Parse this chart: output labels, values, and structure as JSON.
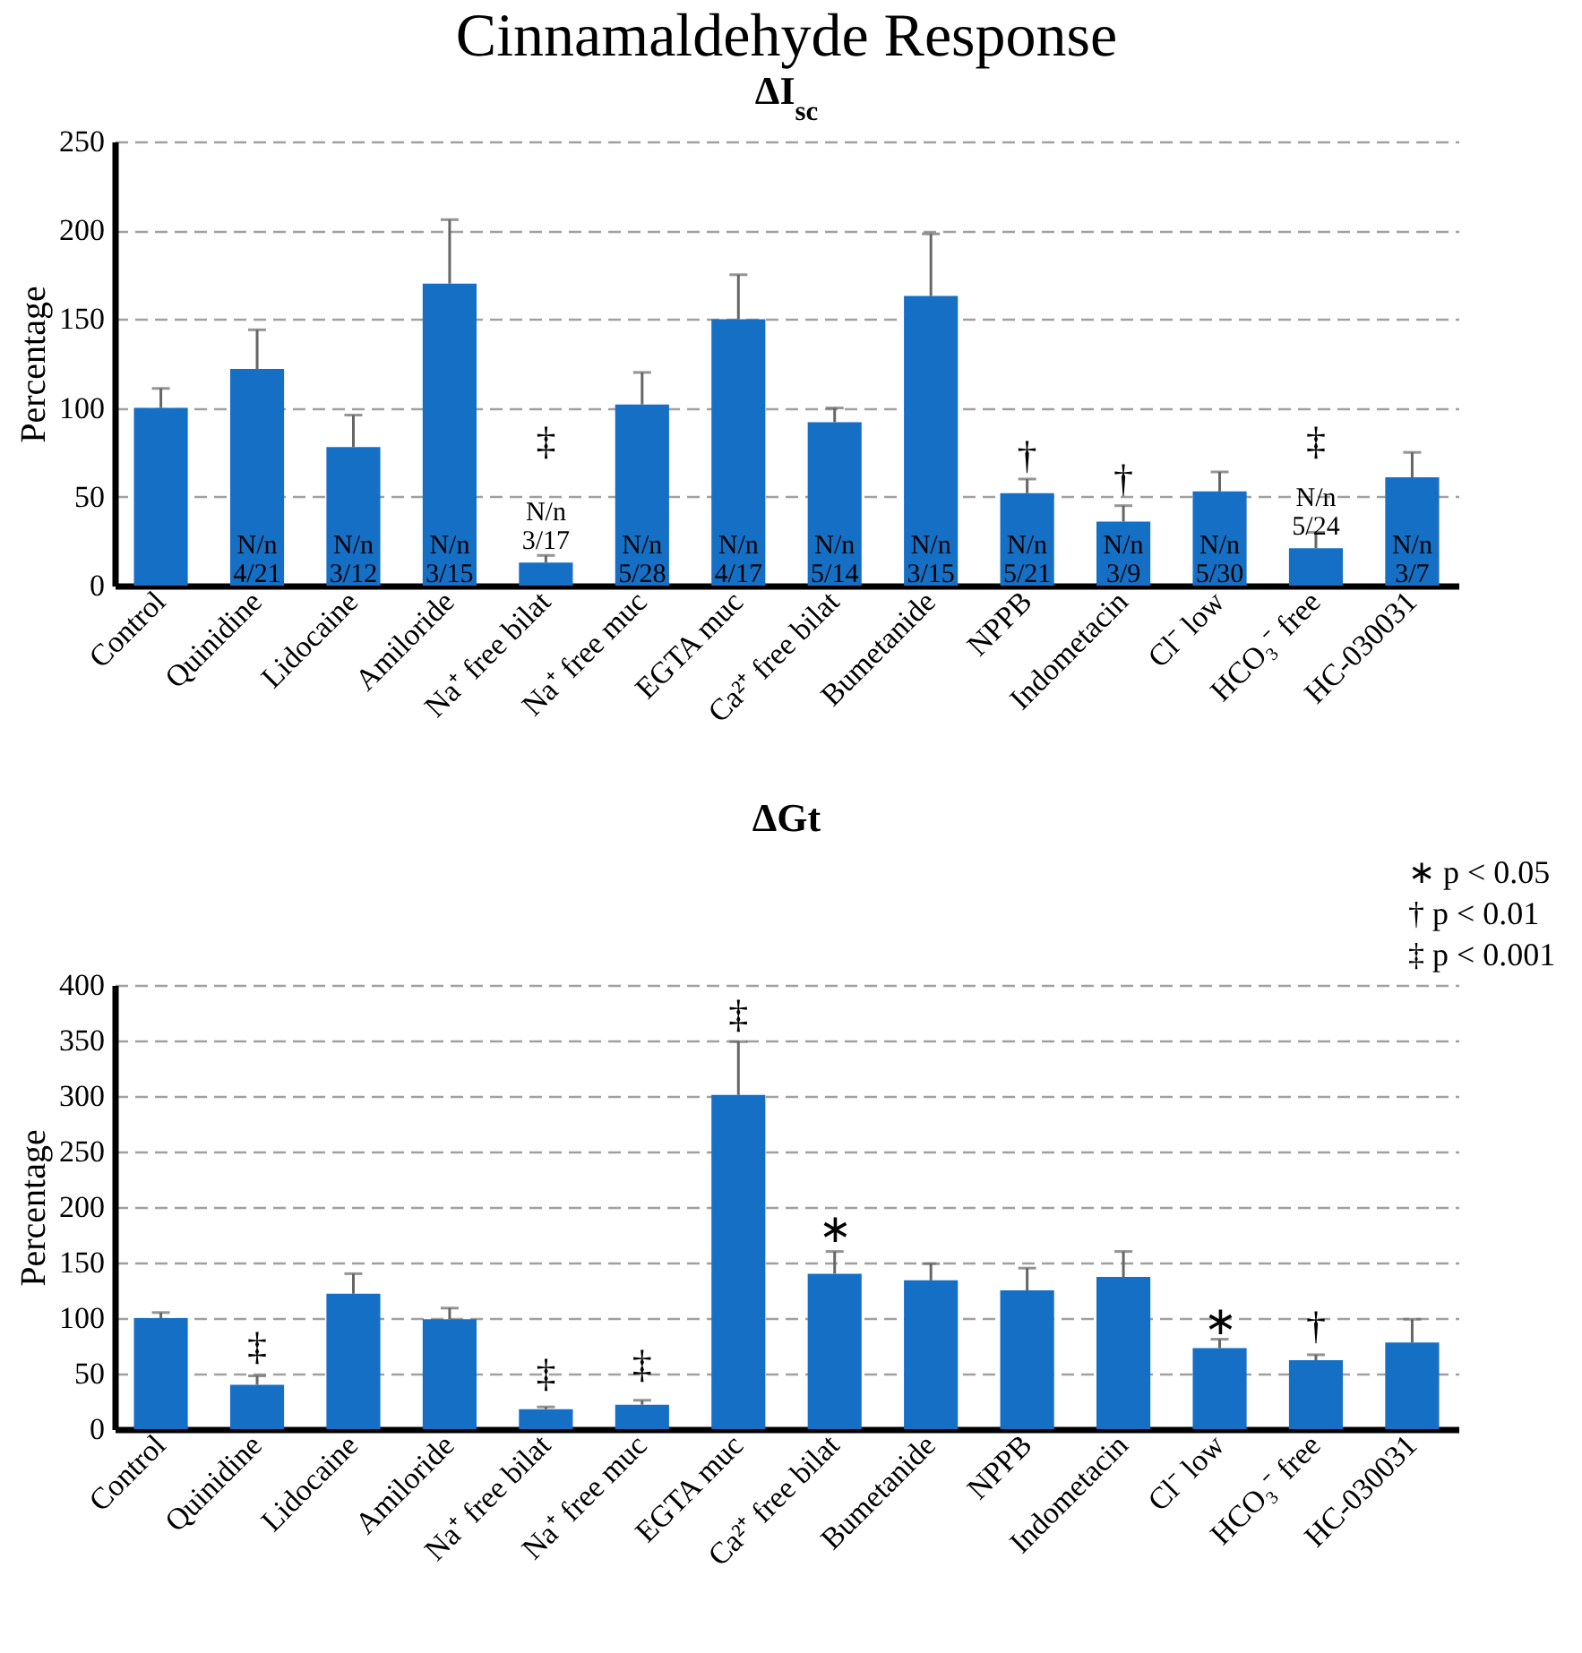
{
  "chart_data": [
    {
      "type": "bar",
      "title": "Cinnamaldehyde Response",
      "subtitle": "ΔI$_{sc}$",
      "ylabel": "Percentage",
      "categories": [
        "Control",
        "Quinidine",
        "Lidocaine",
        "Amiloride",
        "Na⁺ free bilat",
        "Na⁺ free muc",
        "EGTA muc",
        "Ca²⁺ free bilat",
        "Bumetanide",
        "NPPB",
        "Indometacin",
        "Cl⁻ low",
        "HCO₃⁻ free",
        "HC-030031"
      ],
      "values": [
        100,
        122,
        78,
        170,
        13,
        102,
        150,
        92,
        163,
        52,
        36,
        53,
        21,
        61
      ],
      "errors": [
        [
          100,
          111
        ],
        [
          122,
          144
        ],
        [
          78,
          96
        ],
        [
          170,
          206
        ],
        [
          13,
          17
        ],
        [
          102,
          120
        ],
        [
          150,
          175
        ],
        [
          92,
          100
        ],
        [
          163,
          198
        ],
        [
          52,
          60
        ],
        [
          36,
          45
        ],
        [
          53,
          64
        ],
        [
          21,
          30
        ],
        [
          61,
          75
        ]
      ],
      "color": "#1570c5",
      "ylim": [
        0,
        250
      ],
      "yticks": [
        0,
        50,
        100,
        150,
        200,
        250
      ],
      "grid": "y",
      "annotations": [
        "N/n\n4/21",
        "N/n\n3/12",
        "N/n\n3/15",
        "‡",
        "N/n\n3/17",
        "N/n\n5/28",
        "N/n\n4/17",
        "N/n\n5/14",
        "N/n\n3/15",
        "†",
        "N/n\n5/21",
        "†",
        "N/n\n3/9",
        "N/n\n5/30",
        "‡",
        "N/n\n5/24",
        "N/n\n3/7"
      ]
    },
    {
      "type": "bar",
      "title": "ΔGt",
      "ylabel": "Percentage",
      "categories": [
        "Control",
        "Quinidine",
        "Lidocaine",
        "Amiloride",
        "Na⁺ free bilat",
        "Na⁺ free muc",
        "EGTA muc",
        "Ca²⁺ free bilat",
        "Bumetanide",
        "NPPB",
        "Indometacin",
        "Cl⁻ low",
        "HCO₃⁻ free",
        "HC-030031"
      ],
      "values": [
        100,
        40,
        122,
        99,
        18,
        22,
        301,
        140,
        134,
        125,
        137,
        73,
        62,
        78
      ],
      "errors": [
        [
          100,
          105
        ],
        [
          40,
          48
        ],
        [
          122,
          140
        ],
        [
          99,
          109
        ],
        [
          18,
          20
        ],
        [
          22,
          26
        ],
        [
          301,
          349
        ],
        [
          140,
          160
        ],
        [
          134,
          149
        ],
        [
          125,
          145
        ],
        [
          137,
          160
        ],
        [
          73,
          81
        ],
        [
          62,
          67
        ],
        [
          78,
          99
        ]
      ],
      "color": "#1570c5",
      "ylim": [
        0,
        400
      ],
      "yticks": [
        0,
        50,
        100,
        150,
        200,
        250,
        300,
        350,
        400
      ],
      "grid": "y",
      "annotations": [
        "∗  p < 0.05",
        "†  p < 0.01",
        "‡  p < 0.001",
        "‡",
        "‡",
        "‡",
        "‡",
        "∗",
        "∗",
        "†"
      ]
    }
  ]
}
